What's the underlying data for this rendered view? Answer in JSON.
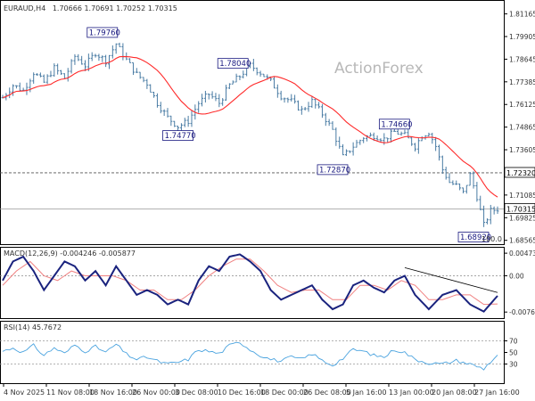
{
  "header": {
    "symbol": "EURAUD,H4",
    "ohlc": "1.70666 1.70691 1.70252 1.70315"
  },
  "watermark": "ActionForex",
  "chart_data": [
    {
      "type": "candlestick",
      "name": "price",
      "y_ticks": [
        "1.81165",
        "1.79905",
        "1.78645",
        "1.77385",
        "1.76125",
        "1.74865",
        "1.73605",
        "1.72320",
        "1.71085",
        "1.69825",
        "1.68565"
      ],
      "ylim": [
        1.6845,
        1.8179
      ],
      "ma_color": "#ff2a2a",
      "bar_color": "#4a7ca4",
      "close_path": [
        [
          0,
          1.765
        ],
        [
          3,
          1.772
        ],
        [
          6,
          1.769
        ],
        [
          9,
          1.779
        ],
        [
          12,
          1.7735
        ],
        [
          15,
          1.7815
        ],
        [
          18,
          1.776
        ],
        [
          21,
          1.788
        ],
        [
          24,
          1.783
        ],
        [
          27,
          1.79
        ],
        [
          30,
          1.7855
        ],
        [
          33,
          1.795
        ],
        [
          36,
          1.786
        ],
        [
          39,
          1.778
        ],
        [
          42,
          1.773
        ],
        [
          45,
          1.762
        ],
        [
          48,
          1.754
        ],
        [
          51,
          1.749
        ],
        [
          54,
          1.752
        ],
        [
          57,
          1.762
        ],
        [
          60,
          1.767
        ],
        [
          63,
          1.762
        ],
        [
          66,
          1.772
        ],
        [
          69,
          1.777
        ],
        [
          72,
          1.783
        ],
        [
          75,
          1.779
        ],
        [
          78,
          1.774
        ],
        [
          81,
          1.766
        ],
        [
          84,
          1.763
        ],
        [
          87,
          1.758
        ],
        [
          90,
          1.763
        ],
        [
          93,
          1.756
        ],
        [
          96,
          1.747
        ],
        [
          99,
          1.732
        ],
        [
          102,
          1.738
        ],
        [
          105,
          1.743
        ],
        [
          108,
          1.744
        ],
        [
          111,
          1.742
        ],
        [
          114,
          1.746
        ],
        [
          117,
          1.744
        ],
        [
          120,
          1.738
        ],
        [
          122,
          1.744
        ],
        [
          124,
          1.746
        ],
        [
          126,
          1.738
        ],
        [
          128,
          1.725
        ],
        [
          130,
          1.718
        ],
        [
          132,
          1.716
        ],
        [
          134,
          1.712
        ],
        [
          136,
          1.722
        ],
        [
          138,
          1.71
        ],
        [
          140,
          1.694
        ],
        [
          142,
          1.702
        ],
        [
          144,
          1.7031
        ]
      ],
      "labels": [
        {
          "text": "1.79760",
          "x": 29,
          "y": 1.7976
        },
        {
          "text": "1.78040",
          "x": 67,
          "y": 1.7804
        },
        {
          "text": "1.74770",
          "x": 51,
          "y": 1.7477
        },
        {
          "text": "1.72870",
          "x": 96,
          "y": 1.7287
        },
        {
          "text": "1.74660",
          "x": 114,
          "y": 1.7466
        },
        {
          "text": "1.68920",
          "x": 137,
          "y": 1.6892
        }
      ],
      "price_tags": [
        {
          "text": "1.72320",
          "value": 1.7232,
          "style": "dashed"
        },
        {
          "text": "1.70315",
          "value": 1.70315,
          "style": "solid"
        }
      ],
      "annotation": "100.0"
    },
    {
      "type": "macd",
      "title": "MACD(12,26,9) -0.004246 -0.005877",
      "y_ticks": [
        "0.004731",
        "0.00",
        "-0.007601"
      ],
      "ylim": [
        -0.0085,
        0.0055
      ],
      "main_color": "#1a237e",
      "signal_color": "#f08080",
      "main_path": [
        [
          0,
          -0.001
        ],
        [
          3,
          0.003
        ],
        [
          6,
          0.004
        ],
        [
          9,
          0.001
        ],
        [
          12,
          -0.003
        ],
        [
          15,
          0.0
        ],
        [
          18,
          0.003
        ],
        [
          21,
          0.002
        ],
        [
          24,
          -0.001
        ],
        [
          27,
          0.001
        ],
        [
          30,
          -0.002
        ],
        [
          33,
          0.002
        ],
        [
          36,
          -0.001
        ],
        [
          39,
          -0.004
        ],
        [
          42,
          -0.003
        ],
        [
          45,
          -0.004
        ],
        [
          48,
          -0.006
        ],
        [
          51,
          -0.005
        ],
        [
          54,
          -0.006
        ],
        [
          57,
          -0.001
        ],
        [
          60,
          0.002
        ],
        [
          63,
          0.001
        ],
        [
          66,
          0.004
        ],
        [
          69,
          0.0045
        ],
        [
          72,
          0.003
        ],
        [
          75,
          0.001
        ],
        [
          78,
          -0.003
        ],
        [
          81,
          -0.005
        ],
        [
          84,
          -0.004
        ],
        [
          87,
          -0.003
        ],
        [
          90,
          -0.002
        ],
        [
          93,
          -0.005
        ],
        [
          96,
          -0.007
        ],
        [
          99,
          -0.006
        ],
        [
          102,
          -0.002
        ],
        [
          105,
          -0.001
        ],
        [
          108,
          -0.0025
        ],
        [
          111,
          -0.0035
        ],
        [
          114,
          -0.001
        ],
        [
          117,
          0.0
        ],
        [
          120,
          -0.004
        ],
        [
          124,
          -0.007
        ],
        [
          128,
          -0.004
        ],
        [
          132,
          -0.003
        ],
        [
          136,
          -0.006
        ],
        [
          140,
          -0.0075
        ],
        [
          144,
          -0.0042
        ]
      ],
      "signal_path": [
        [
          0,
          -0.002
        ],
        [
          4,
          0.001
        ],
        [
          8,
          0.003
        ],
        [
          12,
          0.0
        ],
        [
          16,
          -0.001
        ],
        [
          20,
          0.001
        ],
        [
          24,
          0.0
        ],
        [
          28,
          0.0
        ],
        [
          32,
          0.0
        ],
        [
          36,
          -0.001
        ],
        [
          40,
          -0.003
        ],
        [
          44,
          -0.003
        ],
        [
          48,
          -0.005
        ],
        [
          52,
          -0.005
        ],
        [
          56,
          -0.003
        ],
        [
          60,
          0.0
        ],
        [
          64,
          0.002
        ],
        [
          68,
          0.0035
        ],
        [
          72,
          0.0035
        ],
        [
          76,
          0.001
        ],
        [
          80,
          -0.002
        ],
        [
          84,
          -0.0035
        ],
        [
          88,
          -0.003
        ],
        [
          92,
          -0.003
        ],
        [
          96,
          -0.005
        ],
        [
          100,
          -0.005
        ],
        [
          104,
          -0.002
        ],
        [
          108,
          -0.002
        ],
        [
          112,
          -0.003
        ],
        [
          116,
          -0.001
        ],
        [
          120,
          -0.002
        ],
        [
          124,
          -0.005
        ],
        [
          128,
          -0.005
        ],
        [
          132,
          -0.004
        ],
        [
          136,
          -0.004
        ],
        [
          140,
          -0.006
        ],
        [
          144,
          -0.0059
        ]
      ]
    },
    {
      "type": "rsi",
      "title": "RSI(14) 45.7672",
      "y_ticks": [
        "70",
        "50",
        "30"
      ],
      "ylim": [
        0,
        100
      ],
      "levels": [
        70,
        30
      ],
      "line_color": "#4aa3df",
      "path": [
        [
          0,
          52
        ],
        [
          3,
          58
        ],
        [
          6,
          50
        ],
        [
          9,
          62
        ],
        [
          12,
          45
        ],
        [
          15,
          58
        ],
        [
          18,
          48
        ],
        [
          21,
          63
        ],
        [
          24,
          52
        ],
        [
          27,
          60
        ],
        [
          30,
          50
        ],
        [
          33,
          64
        ],
        [
          36,
          47
        ],
        [
          39,
          38
        ],
        [
          42,
          42
        ],
        [
          45,
          35
        ],
        [
          48,
          30
        ],
        [
          51,
          33
        ],
        [
          54,
          38
        ],
        [
          57,
          55
        ],
        [
          60,
          52
        ],
        [
          63,
          48
        ],
        [
          66,
          62
        ],
        [
          69,
          68
        ],
        [
          72,
          55
        ],
        [
          75,
          45
        ],
        [
          78,
          38
        ],
        [
          81,
          35
        ],
        [
          84,
          42
        ],
        [
          87,
          38
        ],
        [
          90,
          48
        ],
        [
          93,
          36
        ],
        [
          96,
          28
        ],
        [
          99,
          40
        ],
        [
          102,
          55
        ],
        [
          105,
          52
        ],
        [
          108,
          45
        ],
        [
          111,
          42
        ],
        [
          114,
          55
        ],
        [
          117,
          50
        ],
        [
          120,
          38
        ],
        [
          124,
          32
        ],
        [
          128,
          30
        ],
        [
          132,
          36
        ],
        [
          136,
          30
        ],
        [
          140,
          22
        ],
        [
          144,
          45.8
        ]
      ]
    }
  ],
  "x_ticks": [
    "4 Nov 2025",
    "11 Nov 08:00",
    "18 Nov 16:00",
    "26 Nov 00:00",
    "3 Dec 08:00",
    "10 Dec 16:00",
    "18 Dec 00:00",
    "26 Dec 08:00",
    "5 Jan 16:00",
    "13 Jan 00:00",
    "20 Jan 08:00",
    "27 Jan 16:00"
  ]
}
